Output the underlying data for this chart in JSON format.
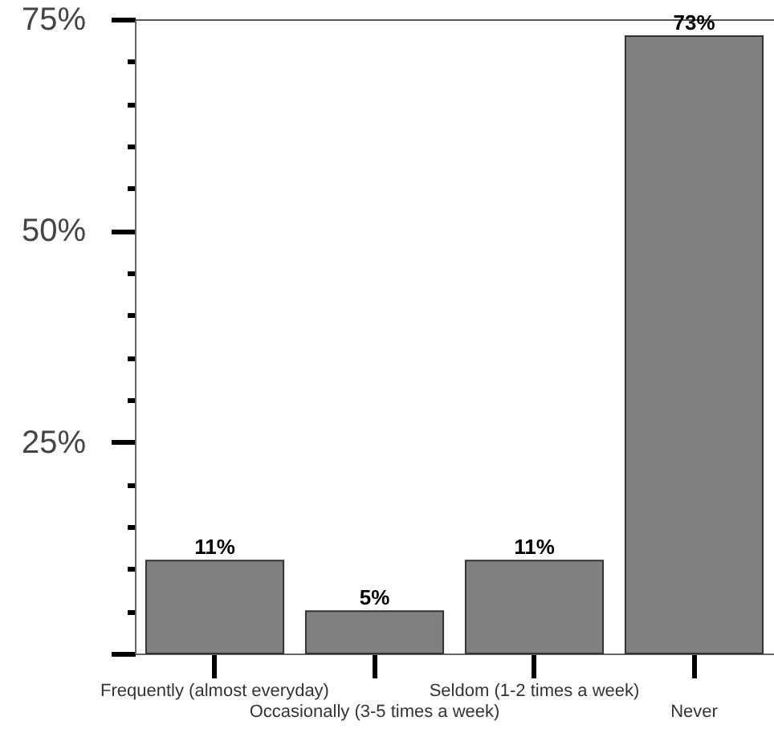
{
  "chart_data": {
    "type": "bar",
    "categories": [
      "Frequently (almost everyday)",
      "Occasionally (3-5 times a week)",
      "Seldom (1-2 times a week)",
      "Never"
    ],
    "values": [
      11,
      5,
      11,
      73
    ],
    "value_labels": [
      "11%",
      "5%",
      "11%",
      "73%"
    ],
    "color": "#808080",
    "ylim": [
      0,
      75
    ],
    "yticks": [
      {
        "value": 0,
        "label": null
      },
      {
        "value": 5,
        "label": null
      },
      {
        "value": 10,
        "label": null
      },
      {
        "value": 15,
        "label": null
      },
      {
        "value": 20,
        "label": null
      },
      {
        "value": 25,
        "label": "25%"
      },
      {
        "value": 30,
        "label": null
      },
      {
        "value": 35,
        "label": null
      },
      {
        "value": 40,
        "label": null
      },
      {
        "value": 45,
        "label": null
      },
      {
        "value": 50,
        "label": "50%"
      },
      {
        "value": 55,
        "label": null
      },
      {
        "value": 60,
        "label": null
      },
      {
        "value": 65,
        "label": null
      },
      {
        "value": 70,
        "label": null
      },
      {
        "value": 75,
        "label": "75%"
      }
    ],
    "grid": false
  }
}
